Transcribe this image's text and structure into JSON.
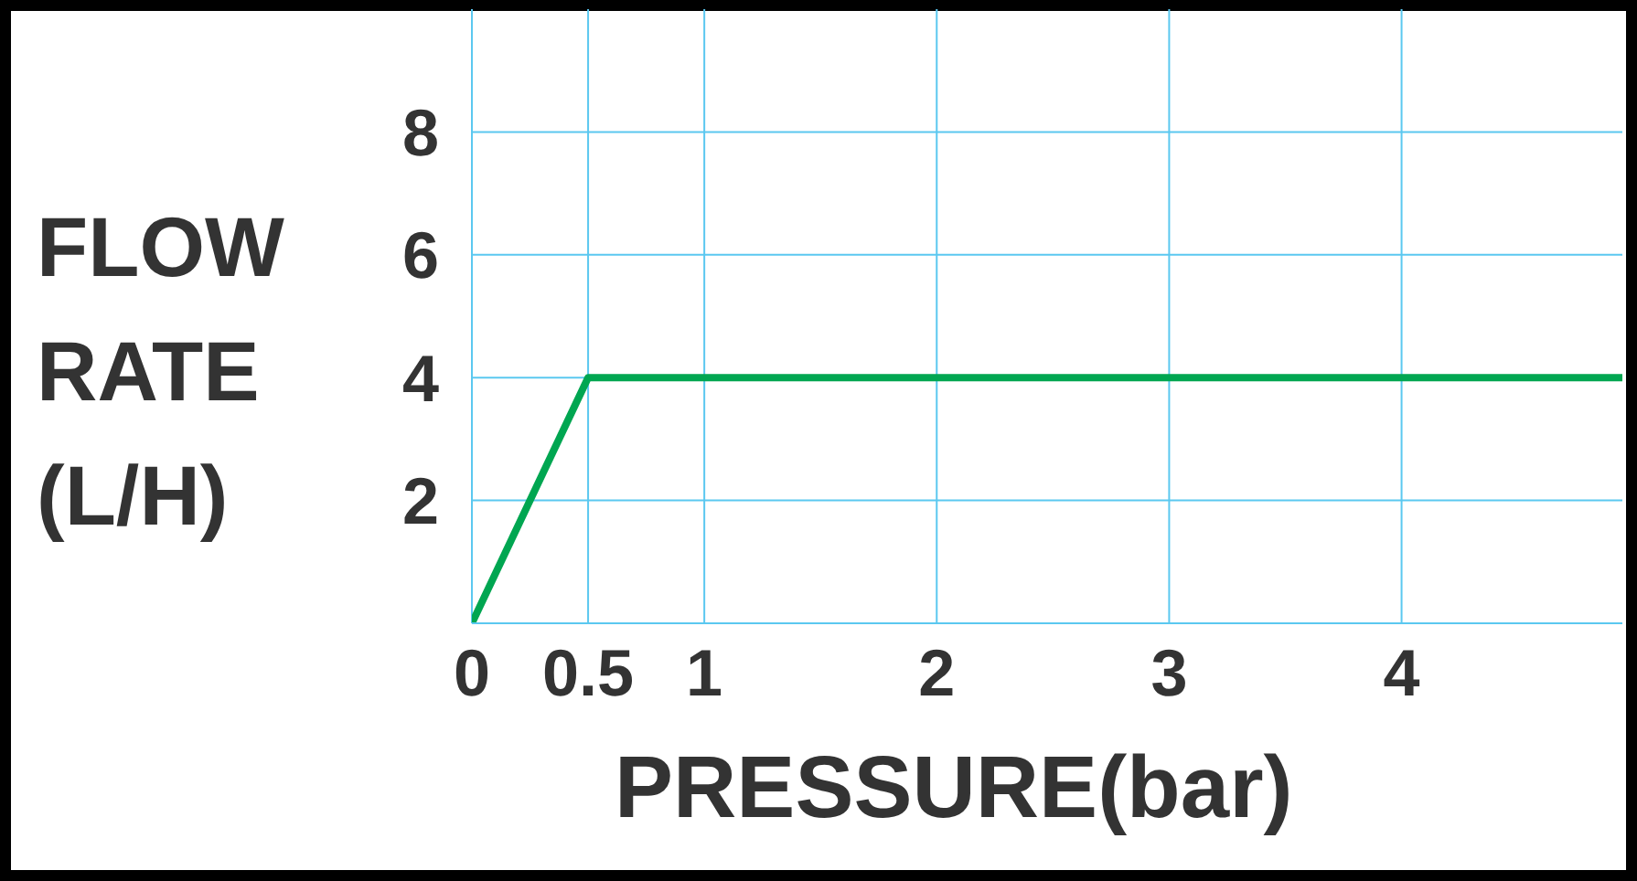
{
  "chart_data": {
    "type": "line",
    "xlabel": "PRESSURE(bar)",
    "ylabel": "FLOW RATE (L/H)",
    "x": [
      0,
      0.5,
      4.95
    ],
    "series": [
      {
        "color": "#00a651",
        "values": [
          0,
          4,
          4
        ]
      }
    ],
    "xlim": [
      0,
      4.95
    ],
    "xticks": [
      0,
      0.5,
      1,
      2,
      3,
      4
    ],
    "ylim": [
      0,
      10
    ],
    "yticks": [
      2,
      4,
      6,
      8
    ],
    "grid": true,
    "marker": "none",
    "line_style": "solid"
  }
}
